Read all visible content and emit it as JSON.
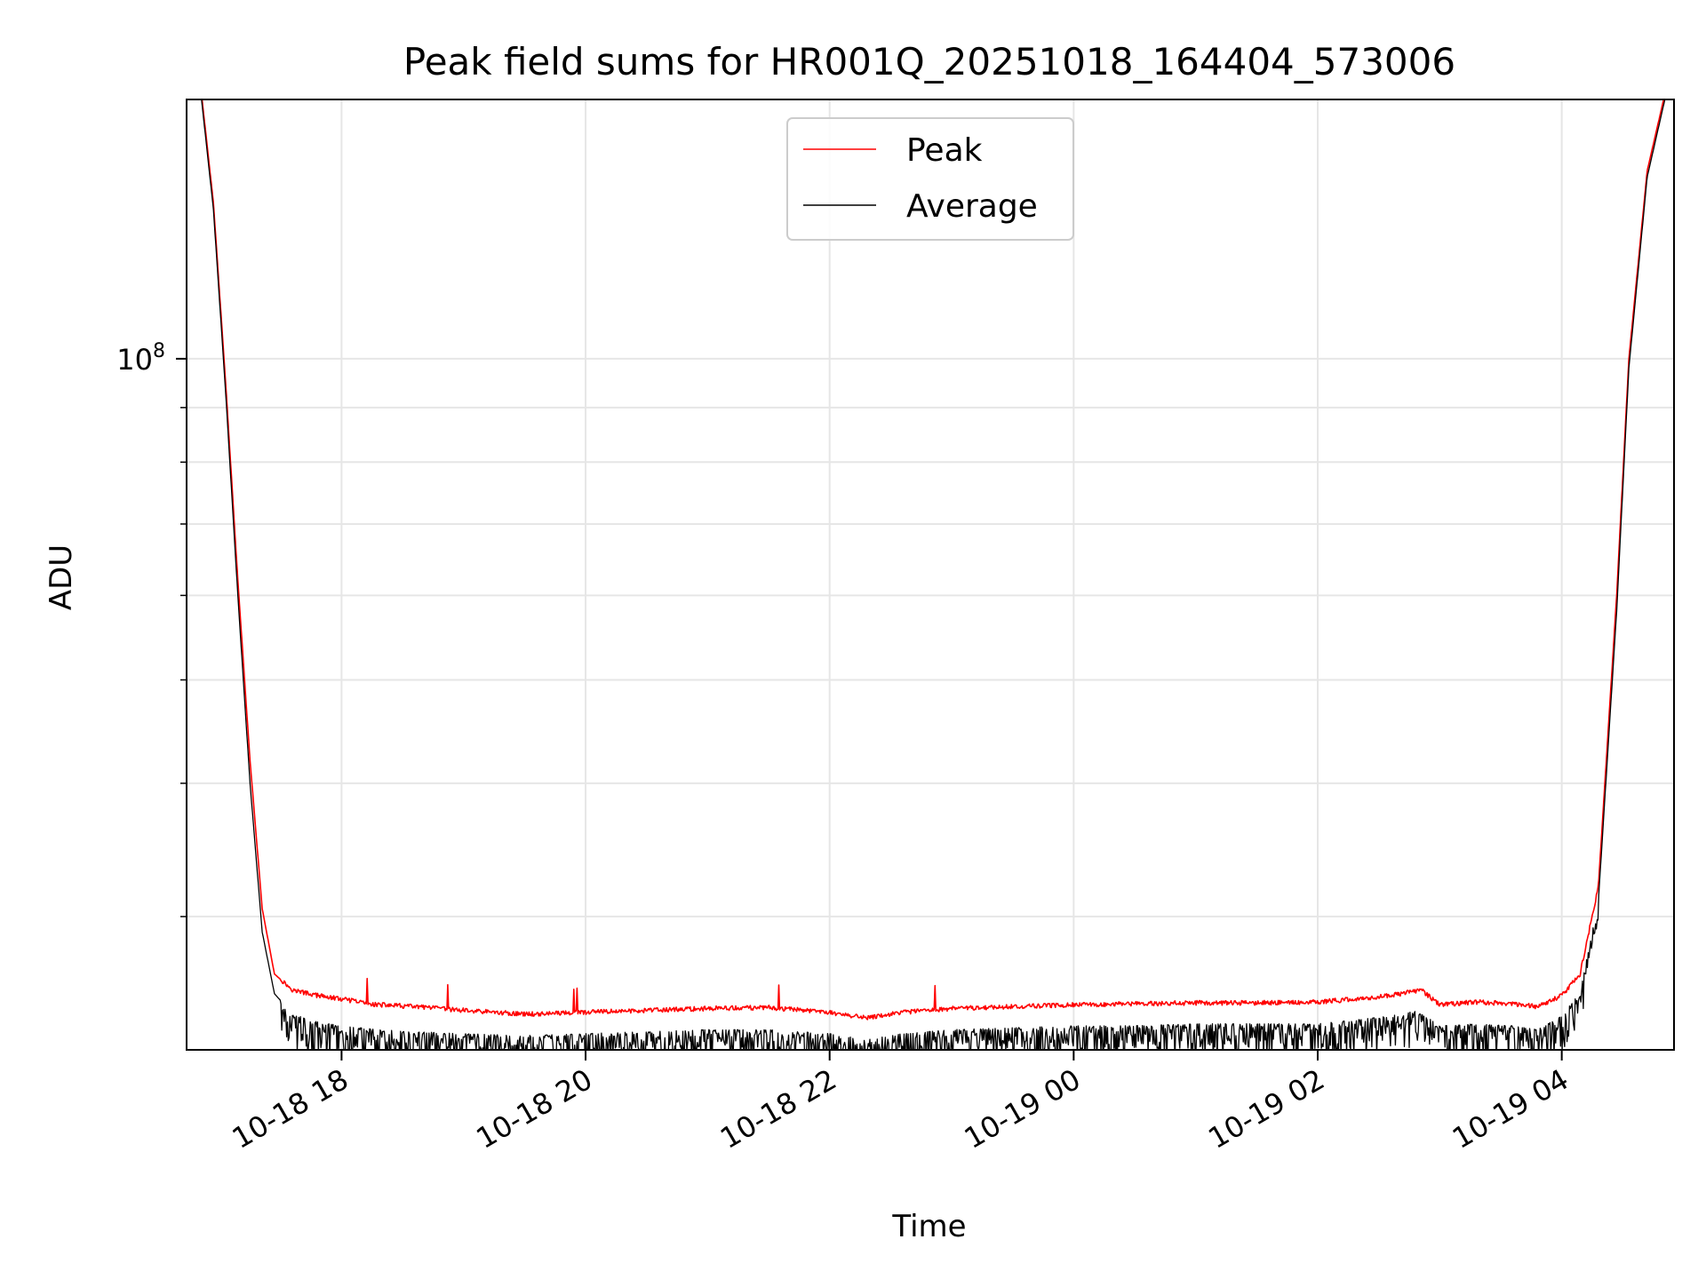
{
  "chart_data": {
    "type": "line",
    "title": "Peak field sums for HR001Q_20251018_164404_573006",
    "xlabel": "Time",
    "ylabel": "ADU",
    "yscale": "log",
    "ylim": [
      22500000,
      175000000
    ],
    "xlim_hours": [
      16.73,
      4.92
    ],
    "x_ticks": [
      {
        "hour": 18,
        "label": "10-18 18"
      },
      {
        "hour": 20,
        "label": "10-18 20"
      },
      {
        "hour": 22,
        "label": "10-18 22"
      },
      {
        "hour": 24,
        "label": "10-19 00"
      },
      {
        "hour": 26,
        "label": "10-19 02"
      },
      {
        "hour": 28,
        "label": "10-19 04"
      }
    ],
    "y_major_ticks": [
      {
        "value": 100000000,
        "base": "10",
        "exp": "8"
      }
    ],
    "y_minor_ticks": [
      30000000,
      40000000,
      50000000,
      60000000,
      70000000,
      80000000,
      90000000,
      200000000
    ],
    "grid": true,
    "legend_position": "upper-center",
    "series": [
      {
        "name": "Peak",
        "color": "#ff0000",
        "x_hours": [
          16.85,
          16.95,
          17.05,
          17.15,
          17.25,
          17.35,
          17.45,
          17.6,
          17.8,
          18.0,
          18.3,
          18.6,
          19.0,
          19.5,
          20.0,
          20.5,
          21.0,
          21.5,
          22.0,
          22.3,
          22.6,
          23.0,
          23.5,
          24.0,
          24.5,
          25.0,
          25.5,
          26.0,
          26.3,
          26.6,
          26.85,
          27.0,
          27.3,
          27.6,
          27.8,
          28.0,
          28.15,
          28.3,
          28.45,
          28.55,
          28.7,
          28.85
        ],
        "values": [
          178000000,
          140000000,
          95000000,
          62000000,
          42000000,
          30500000,
          26500000,
          25600000,
          25300000,
          25100000,
          24800000,
          24700000,
          24500000,
          24300000,
          24400000,
          24500000,
          24600000,
          24650000,
          24400000,
          24100000,
          24400000,
          24600000,
          24700000,
          24800000,
          24850000,
          24900000,
          24900000,
          24950000,
          25100000,
          25300000,
          25600000,
          24800000,
          24950000,
          24850000,
          24700000,
          25300000,
          26500000,
          32000000,
          60000000,
          100000000,
          150000000,
          178000000
        ]
      },
      {
        "name": "Average",
        "color": "#000000",
        "x_hours": [
          16.85,
          16.95,
          17.05,
          17.15,
          17.25,
          17.35,
          17.45,
          17.6,
          17.8,
          18.0,
          18.3,
          18.6,
          19.0,
          19.5,
          20.0,
          20.5,
          21.0,
          21.5,
          22.0,
          22.3,
          22.6,
          23.0,
          23.5,
          24.0,
          24.5,
          25.0,
          25.5,
          26.0,
          26.3,
          26.6,
          26.85,
          27.0,
          27.3,
          27.6,
          27.8,
          28.0,
          28.15,
          28.3,
          28.45,
          28.55,
          28.7,
          28.85
        ],
        "values": [
          176000000,
          138000000,
          93000000,
          60000000,
          40000000,
          29000000,
          25400000,
          24300000,
          23900000,
          23700000,
          23500000,
          23400000,
          23300000,
          23200000,
          23300000,
          23400000,
          23500000,
          23500000,
          23300000,
          23000000,
          23300000,
          23500000,
          23600000,
          23700000,
          23700000,
          23800000,
          23800000,
          23800000,
          24000000,
          24200000,
          24600000,
          23700000,
          23800000,
          23700000,
          23500000,
          24200000,
          25500000,
          31000000,
          58000000,
          98000000,
          148000000,
          176000000
        ]
      }
    ]
  }
}
